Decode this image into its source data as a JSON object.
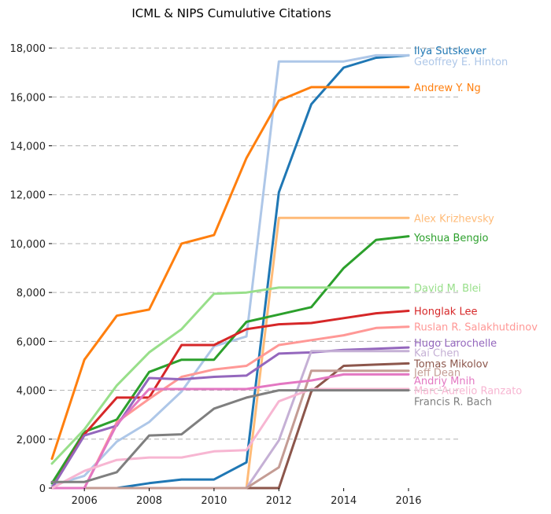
{
  "chart_data": {
    "type": "line",
    "title": "ICML & NIPS Cumulutive Citations",
    "xlabel": "",
    "ylabel": "",
    "xlim": [
      2005,
      2016
    ],
    "ylim": [
      0,
      19000
    ],
    "x": [
      2005,
      2006,
      2007,
      2008,
      2009,
      2010,
      2011,
      2012,
      2013,
      2014,
      2015,
      2016
    ],
    "x_ticks": [
      2006,
      2008,
      2010,
      2012,
      2014,
      2016
    ],
    "x_tick_labels": [
      "2006",
      "2008",
      "2010",
      "2012",
      "2014",
      "2016"
    ],
    "y_ticks": [
      0,
      2000,
      4000,
      6000,
      8000,
      10000,
      12000,
      14000,
      16000,
      18000
    ],
    "y_tick_labels": [
      "0",
      "2,000",
      "4,000",
      "6,000",
      "8,000",
      "10,000",
      "12,000",
      "14,000",
      "16,000",
      "18,000"
    ],
    "grid": "horizontal dashed",
    "legend": "direct labels at right end of lines",
    "series": [
      {
        "name": "Ilya Sutskever",
        "color": "#1f77b4",
        "values": [
          0,
          0,
          0,
          200,
          350,
          350,
          1050,
          12100,
          15700,
          17200,
          17600,
          17700
        ]
      },
      {
        "name": "Geoffrey E. Hinton",
        "color": "#aec7e8",
        "values": [
          100,
          500,
          1900,
          2700,
          3950,
          5800,
          6200,
          17450,
          17450,
          17450,
          17700,
          17700
        ]
      },
      {
        "name": "Andrew Y. Ng",
        "color": "#ff7f0e",
        "values": [
          1200,
          5250,
          7050,
          7300,
          10000,
          10350,
          13500,
          15850,
          16400,
          16400,
          16400,
          16400
        ]
      },
      {
        "name": "Alex Krizhevsky",
        "color": "#ffbb78",
        "values": [
          0,
          0,
          0,
          0,
          0,
          0,
          0,
          11050,
          11050,
          11050,
          11050,
          11050
        ]
      },
      {
        "name": "Yoshua Bengio",
        "color": "#2ca02c",
        "values": [
          200,
          2300,
          2800,
          4750,
          5250,
          5250,
          6800,
          7100,
          7400,
          9000,
          10150,
          10300
        ]
      },
      {
        "name": "David M. Blei",
        "color": "#98df8a",
        "values": [
          1000,
          2400,
          4200,
          5550,
          6500,
          7950,
          8000,
          8200,
          8200,
          8200,
          8200,
          8200
        ]
      },
      {
        "name": "Honglak Lee",
        "color": "#d62728",
        "values": [
          0,
          2200,
          3700,
          3700,
          5850,
          5850,
          6500,
          6700,
          6750,
          6950,
          7150,
          7250
        ]
      },
      {
        "name": "Ruslan R. Salakhutdinov",
        "color": "#ff9896",
        "values": [
          0,
          0,
          2700,
          3650,
          4550,
          4850,
          5000,
          5850,
          6050,
          6250,
          6550,
          6600
        ]
      },
      {
        "name": "Hugo Larochelle",
        "color": "#9467bd",
        "values": [
          0,
          2150,
          2550,
          4500,
          4450,
          4550,
          4600,
          5500,
          5550,
          5650,
          5700,
          5750
        ]
      },
      {
        "name": "Kai Chen",
        "color": "#c5b0d5",
        "values": [
          0,
          0,
          0,
          0,
          0,
          0,
          0,
          1950,
          5600,
          5600,
          5600,
          5600
        ]
      },
      {
        "name": "Tomas Mikolov",
        "color": "#8c564b",
        "values": [
          0,
          0,
          0,
          0,
          0,
          0,
          0,
          0,
          3950,
          5000,
          5050,
          5100
        ]
      },
      {
        "name": "Jeff Dean",
        "color": "#c49c94",
        "values": [
          0,
          0,
          0,
          0,
          0,
          0,
          0,
          850,
          4800,
          4800,
          4800,
          4800
        ]
      },
      {
        "name": "Andriy Mnih",
        "color": "#e377c2",
        "values": [
          0,
          0,
          2600,
          4050,
          4050,
          4050,
          4050,
          4250,
          4400,
          4650,
          4650,
          4650
        ]
      },
      {
        "name": "Marc'Aurelio Ranzato",
        "color": "#f7b6d2",
        "values": [
          0,
          700,
          1150,
          1250,
          1250,
          1500,
          1550,
          3550,
          4050,
          4050,
          4050,
          4050
        ]
      },
      {
        "name": "Francis R. Bach",
        "color": "#7f7f7f",
        "values": [
          250,
          250,
          650,
          2150,
          2200,
          3250,
          3700,
          4000,
          4000,
          4000,
          4000,
          4000
        ]
      }
    ],
    "label_order": [
      "Ilya Sutskever",
      "Geoffrey E. Hinton",
      "Andrew Y. Ng",
      "Alex Krizhevsky",
      "Yoshua Bengio",
      "David M. Blei",
      "Honglak Lee",
      "Ruslan R. Salakhutdinov",
      "Hugo Larochelle",
      "Kai Chen",
      "Tomas Mikolov",
      "Jeff Dean",
      "Andriy Mnih",
      "Marc'Aurelio Ranzato",
      "Francis R. Bach"
    ],
    "label_values": [
      17900,
      17450,
      16400,
      11050,
      10250,
      8200,
      7250,
      6600,
      5950,
      5550,
      5100,
      4750,
      4400,
      4000,
      3550
    ]
  }
}
